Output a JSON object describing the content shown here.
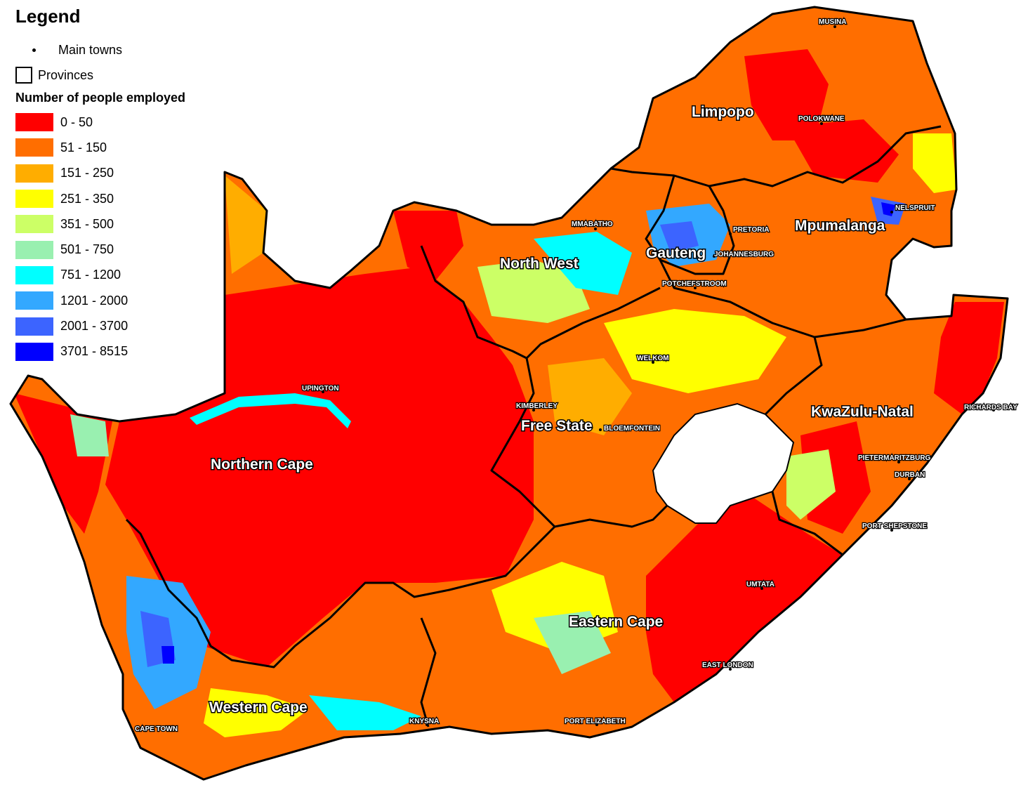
{
  "legend": {
    "title": "Legend",
    "main_towns_label": "Main towns",
    "provinces_label": "Provinces",
    "classes_title": "Number of people employed",
    "classes": [
      {
        "label": "0 - 50",
        "color": "#ff0000"
      },
      {
        "label": "51 - 150",
        "color": "#ff6e00"
      },
      {
        "label": "151 - 250",
        "color": "#ffad00"
      },
      {
        "label": "251 - 350",
        "color": "#ffff00"
      },
      {
        "label": "351 - 500",
        "color": "#ccff66"
      },
      {
        "label": "501 - 750",
        "color": "#99f0b0"
      },
      {
        "label": "751 - 1200",
        "color": "#00ffff"
      },
      {
        "label": "1201 - 2000",
        "color": "#33a8ff"
      },
      {
        "label": "2001 - 3700",
        "color": "#3c64ff"
      },
      {
        "label": "3701 - 8515",
        "color": "#0000ff"
      }
    ]
  },
  "provinces": {
    "limpopo": "Limpopo",
    "mpumalanga": "Mpumalanga",
    "gauteng": "Gauteng",
    "north_west": "North West",
    "northern_cape": "Northern Cape",
    "free_state": "Free State",
    "kwazulu_natal": "KwaZulu-Natal",
    "eastern_cape": "Eastern Cape",
    "western_cape": "Western Cape"
  },
  "towns": {
    "musina": "MUSINA",
    "polokwane": "POLOKWANE",
    "nelspruit": "NELSPRUIT",
    "mmabatho": "MMABATHO",
    "pretoria": "PRETORIA",
    "johannesburg": "JOHANNESBURG",
    "potchefstroom": "POTCHEFSTROOM",
    "welkom": "WELKOM",
    "upington": "UPINGTON",
    "kimberley": "KIMBERLEY",
    "bloemfontein": "BLOEMFONTEIN",
    "richards_bay": "RICHARDS BAY",
    "pietermaritzburg": "PIETERMARITZBURG",
    "durban": "DURBAN",
    "port_shepstone": "PORT SHEPSTONE",
    "umtata": "UMTATA",
    "east_london": "EAST LONDON",
    "port_elizabeth": "PORT ELIZABETH",
    "knysna": "KNYSNA",
    "cape_town": "CAPE TOWN"
  }
}
